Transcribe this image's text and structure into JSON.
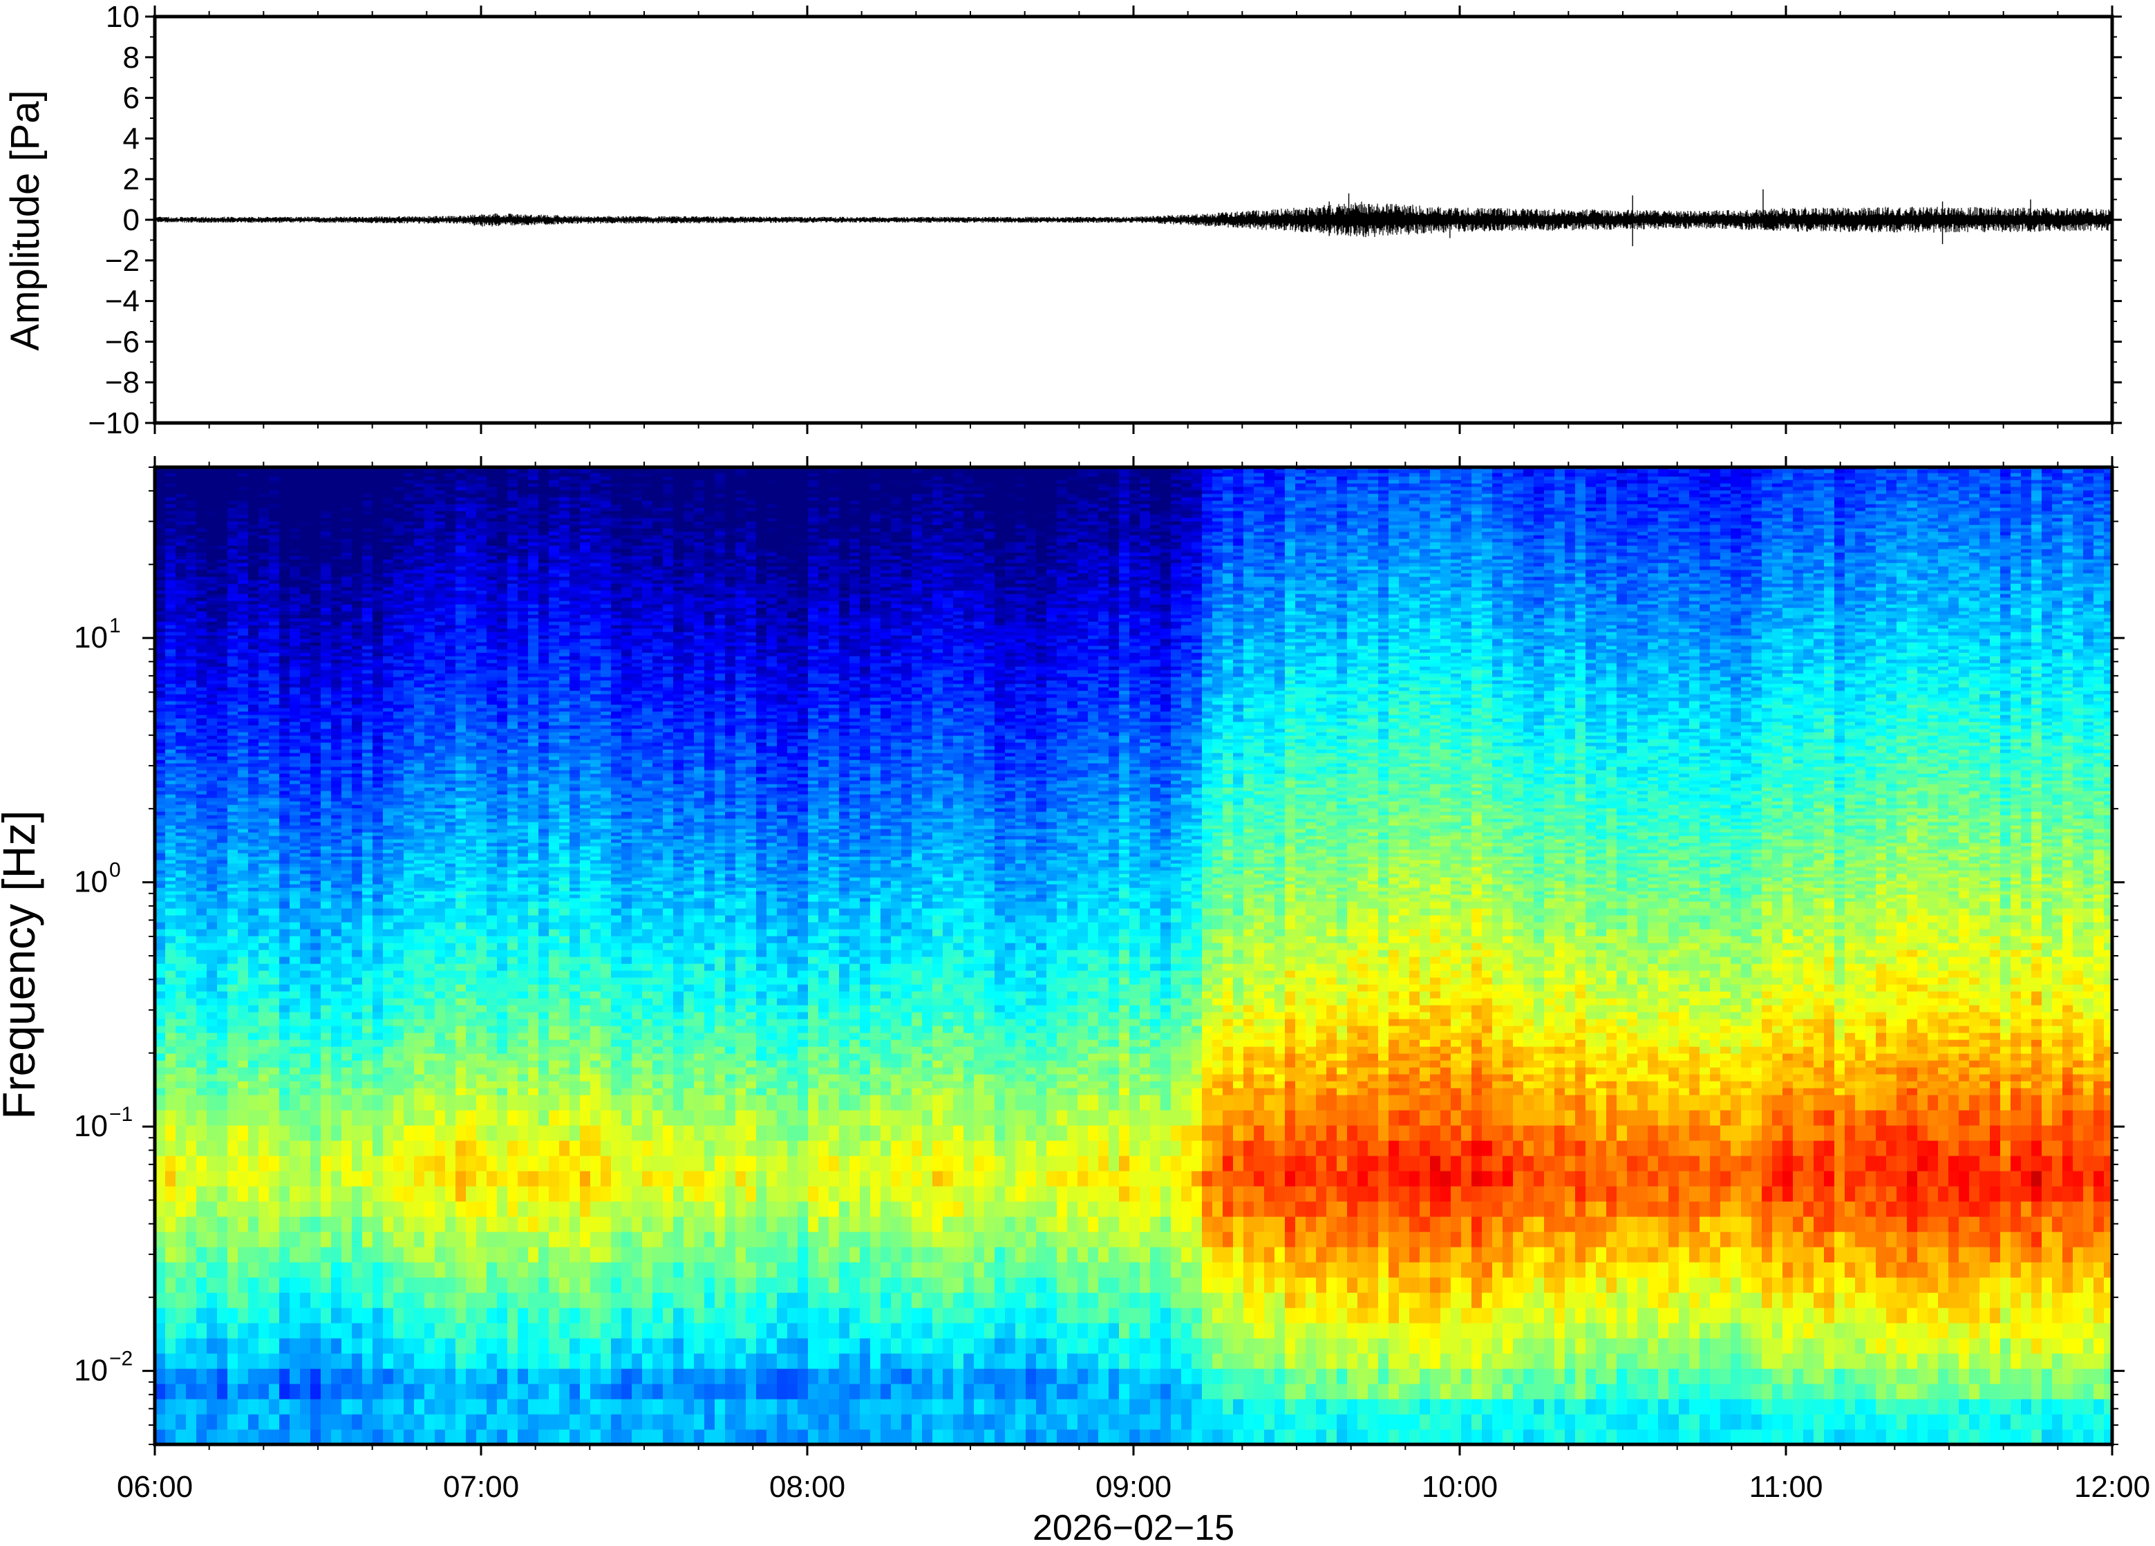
{
  "chart_data": [
    {
      "type": "line",
      "ylabel": "Amplitude [Pa]",
      "ylim": [
        -10,
        10
      ],
      "yticks": [
        10,
        8,
        6,
        4,
        2,
        0,
        -2,
        -4,
        -6,
        -8,
        -10
      ],
      "ytick_labels": [
        "10",
        "8",
        "6",
        "4",
        "2",
        "0",
        "−2",
        "−4",
        "−6",
        "−8",
        "−10"
      ],
      "x_range": [
        "06:00",
        "12:00"
      ],
      "series": [
        {
          "values_hint": "pressure waveform centred on 0 Pa",
          "envelope_times_h": [
            6.0,
            6.5,
            6.95,
            7.0,
            7.3,
            8.0,
            9.0,
            9.2,
            9.5,
            9.7,
            10.0,
            10.5,
            10.7,
            10.9,
            11.0,
            11.5,
            12.0
          ],
          "envelope_pa": [
            0.15,
            0.15,
            0.2,
            0.35,
            0.2,
            0.15,
            0.15,
            0.3,
            0.6,
            0.9,
            0.6,
            0.5,
            0.45,
            0.5,
            0.6,
            0.65,
            0.55
          ],
          "spikes": [
            {
              "t": 9.66,
              "max": 1.3,
              "min": -0.6
            },
            {
              "t": 9.6,
              "max": 0.9,
              "min": -0.8
            },
            {
              "t": 9.97,
              "max": 0.5,
              "min": -0.9
            },
            {
              "t": 10.53,
              "max": 1.2,
              "min": -1.3
            },
            {
              "t": 10.93,
              "max": 1.5,
              "min": -0.4
            },
            {
              "t": 11.48,
              "max": 0.9,
              "min": -1.2
            },
            {
              "t": 11.75,
              "max": 1.0,
              "min": -0.6
            }
          ]
        }
      ]
    },
    {
      "type": "heatmap",
      "ylabel": "Frequency [Hz]",
      "xlabel": "2026−02−15",
      "yscale": "log",
      "ylim": [
        0.005,
        50
      ],
      "yticks": [
        {
          "base": "10",
          "exp": "1"
        },
        {
          "base": "10",
          "exp": "0"
        },
        {
          "base": "10",
          "exp": "−1"
        },
        {
          "base": "10",
          "exp": "−2"
        }
      ],
      "ytick_values": [
        10,
        1,
        0.1,
        0.01
      ],
      "xlim": [
        "06:00",
        "12:00"
      ],
      "xtick_labels": [
        "06:00",
        "07:00",
        "08:00",
        "09:00",
        "10:00",
        "11:00",
        "12:00"
      ],
      "colormap": "jet",
      "column_width_min": 5,
      "column_level_times_h": [
        6.0,
        6.5,
        6.7,
        6.95,
        7.2,
        7.6,
        8.0,
        8.4,
        8.7,
        8.8,
        9.1,
        9.3,
        9.5,
        9.7,
        10.0,
        10.3,
        10.5,
        10.7,
        11.0,
        11.3,
        11.6,
        12.0
      ],
      "column_level": [
        0.1,
        0.02,
        0.0,
        0.25,
        0.2,
        0.1,
        0.05,
        0.15,
        0.05,
        0.25,
        0.2,
        0.7,
        0.85,
        0.85,
        0.9,
        0.7,
        0.75,
        0.7,
        0.75,
        0.85,
        0.85,
        0.9
      ]
    }
  ]
}
